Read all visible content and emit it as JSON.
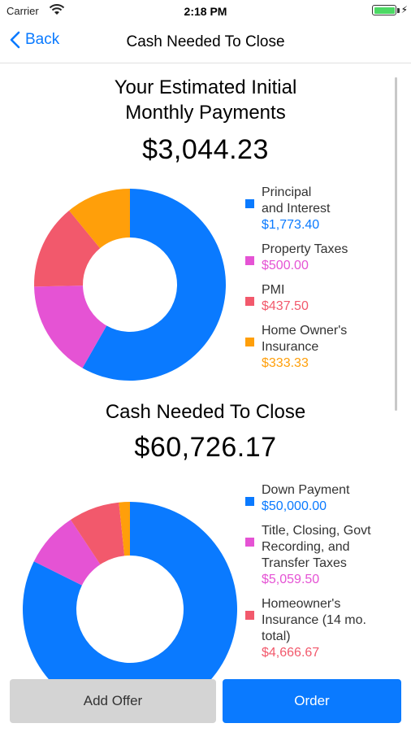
{
  "status_bar": {
    "carrier": "Carrier",
    "time": "2:18 PM",
    "battery_level": 1.0
  },
  "nav": {
    "back_label": "Back",
    "title": "Cash Needed To Close"
  },
  "colors": {
    "blue": "#0a7aff",
    "magenta": "#e553d4",
    "red": "#f2596c",
    "orange": "#ff9f0a",
    "label": "#333333"
  },
  "section1": {
    "title_line1": "Your Estimated Initial",
    "title_line2": "Monthly Payments",
    "amount": "$3,044.23",
    "legend": [
      {
        "line1": "Principal",
        "line2": "and Interest",
        "value": "$1,773.40",
        "color": "#0a7aff",
        "amount": 1773.4
      },
      {
        "line1": "Property Taxes",
        "value": "$500.00",
        "color": "#e553d4",
        "amount": 500.0
      },
      {
        "line1": "PMI",
        "value": "$437.50",
        "color": "#f2596c",
        "amount": 437.5
      },
      {
        "line1": "Home Owner's",
        "line2": "Insurance",
        "value": "$333.33",
        "color": "#ff9f0a",
        "amount": 333.33
      }
    ]
  },
  "section2": {
    "title": "Cash Needed To Close",
    "amount": "$60,726.17",
    "legend": [
      {
        "line1": "Down Payment",
        "value": "$50,000.00",
        "color": "#0a7aff",
        "amount": 50000.0
      },
      {
        "line1": "Title, Closing, Govt",
        "line2": "Recording, and",
        "line3": "Transfer Taxes",
        "value": "$5,059.50",
        "color": "#e553d4",
        "amount": 5059.5
      },
      {
        "line1": "Homeowner's",
        "line2": "Insurance (14 mo.",
        "line3": "total)",
        "value": "$4,666.67",
        "color": "#f2596c",
        "amount": 4666.67
      }
    ],
    "remaining_amount": 1000.0
  },
  "buttons": {
    "add_offer": "Add Offer",
    "order": "Order"
  }
}
